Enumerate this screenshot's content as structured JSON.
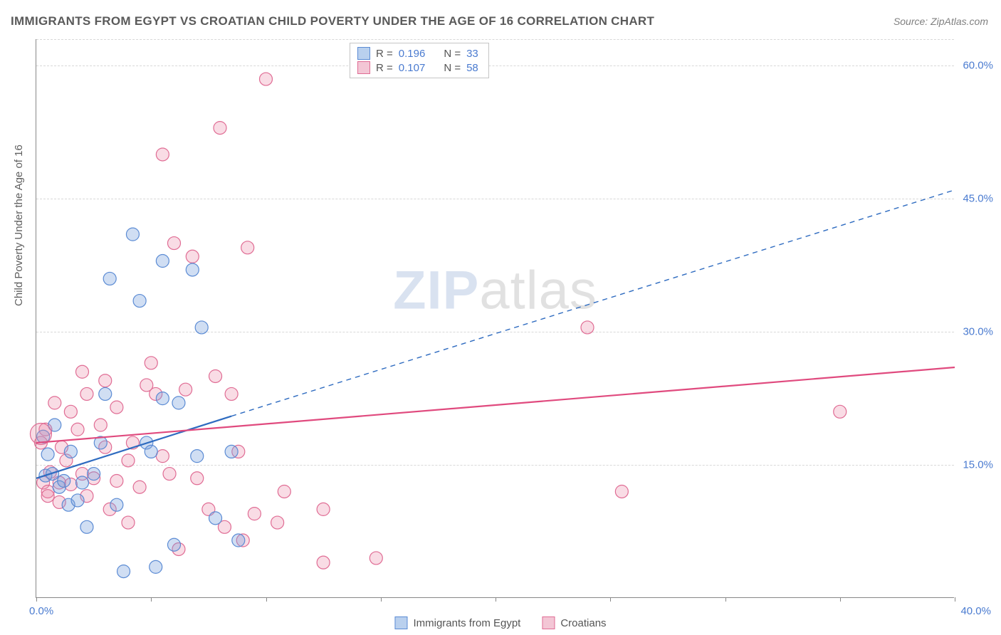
{
  "title": "IMMIGRANTS FROM EGYPT VS CROATIAN CHILD POVERTY UNDER THE AGE OF 16 CORRELATION CHART",
  "source_label": "Source: ",
  "source_name": "ZipAtlas.com",
  "ylabel": "Child Poverty Under the Age of 16",
  "watermark_a": "ZIP",
  "watermark_b": "atlas",
  "chart": {
    "type": "scatter",
    "xlim": [
      0,
      40
    ],
    "ylim": [
      0,
      63
    ],
    "ytick_positions": [
      15,
      30,
      45,
      60
    ],
    "ytick_labels": [
      "15.0%",
      "30.0%",
      "45.0%",
      "60.0%"
    ],
    "xtick_left": "0.0%",
    "xtick_right": "40.0%",
    "xtick_marks": [
      0,
      5,
      10,
      15,
      20,
      25,
      30,
      35,
      40
    ],
    "grid_color": "#d8d8d8",
    "background_color": "#ffffff",
    "axis_color": "#888888",
    "tick_label_color": "#4a7bd0",
    "point_radius": 9,
    "point_stroke_width": 1.2,
    "trend_line_width": 2.2,
    "series": [
      {
        "name": "Immigrants from Egypt",
        "fill": "rgba(120,160,220,0.35)",
        "stroke": "#5b8bd4",
        "swatch_fill": "#b9d0ee",
        "swatch_border": "#5b8bd4",
        "r_value": "0.196",
        "n_value": "33",
        "trend": {
          "solid": {
            "x1": 0,
            "y1": 13.5,
            "x2": 8.5,
            "y2": 20.5
          },
          "dashed": {
            "x1": 8.5,
            "y1": 20.5,
            "x2": 40,
            "y2": 46
          },
          "color": "#2e6bc0"
        },
        "points": [
          [
            0.3,
            18.2
          ],
          [
            0.4,
            13.8
          ],
          [
            0.5,
            16.2
          ],
          [
            0.7,
            14.0
          ],
          [
            0.8,
            19.5
          ],
          [
            1.0,
            12.5
          ],
          [
            1.2,
            13.2
          ],
          [
            1.4,
            10.5
          ],
          [
            1.5,
            16.5
          ],
          [
            1.8,
            11.0
          ],
          [
            2.0,
            13.0
          ],
          [
            2.2,
            8.0
          ],
          [
            2.5,
            14.0
          ],
          [
            2.8,
            17.5
          ],
          [
            3.0,
            23.0
          ],
          [
            3.2,
            36.0
          ],
          [
            3.5,
            10.5
          ],
          [
            3.8,
            3.0
          ],
          [
            4.2,
            41.0
          ],
          [
            4.5,
            33.5
          ],
          [
            4.8,
            17.5
          ],
          [
            5.0,
            16.5
          ],
          [
            5.2,
            3.5
          ],
          [
            5.5,
            22.5
          ],
          [
            5.5,
            38.0
          ],
          [
            6.0,
            6.0
          ],
          [
            6.2,
            22.0
          ],
          [
            6.8,
            37.0
          ],
          [
            7.0,
            16.0
          ],
          [
            7.2,
            30.5
          ],
          [
            7.8,
            9.0
          ],
          [
            8.5,
            16.5
          ],
          [
            8.8,
            6.5
          ]
        ]
      },
      {
        "name": "Croatians",
        "fill": "rgba(235,140,170,0.30)",
        "stroke": "#e06c94",
        "swatch_fill": "#f3c6d5",
        "swatch_border": "#e06c94",
        "r_value": "0.107",
        "n_value": "58",
        "trend": {
          "solid": {
            "x1": 0,
            "y1": 17.5,
            "x2": 40,
            "y2": 26
          },
          "color": "#e04a7e"
        },
        "points": [
          [
            0.2,
            17.5
          ],
          [
            0.3,
            13.0
          ],
          [
            0.4,
            19.0
          ],
          [
            0.5,
            12.0
          ],
          [
            0.6,
            14.2
          ],
          [
            0.8,
            22.0
          ],
          [
            1.0,
            13.0
          ],
          [
            1.1,
            17.0
          ],
          [
            1.3,
            15.5
          ],
          [
            1.5,
            21.0
          ],
          [
            1.5,
            12.8
          ],
          [
            1.8,
            19.0
          ],
          [
            2.0,
            14.0
          ],
          [
            2.0,
            25.5
          ],
          [
            2.2,
            23.0
          ],
          [
            2.2,
            11.5
          ],
          [
            2.5,
            13.5
          ],
          [
            2.8,
            19.5
          ],
          [
            3.0,
            24.5
          ],
          [
            3.2,
            10.0
          ],
          [
            3.5,
            13.2
          ],
          [
            3.5,
            21.5
          ],
          [
            4.0,
            15.5
          ],
          [
            4.0,
            8.5
          ],
          [
            4.2,
            17.5
          ],
          [
            4.5,
            12.5
          ],
          [
            4.8,
            24.0
          ],
          [
            5.0,
            26.5
          ],
          [
            5.2,
            23.0
          ],
          [
            5.5,
            16.0
          ],
          [
            5.5,
            50.0
          ],
          [
            5.8,
            14.0
          ],
          [
            6.0,
            40.0
          ],
          [
            6.2,
            5.5
          ],
          [
            6.5,
            23.5
          ],
          [
            6.8,
            38.5
          ],
          [
            7.0,
            13.5
          ],
          [
            7.5,
            10.0
          ],
          [
            7.8,
            25.0
          ],
          [
            8.0,
            53.0
          ],
          [
            8.2,
            8.0
          ],
          [
            8.5,
            23.0
          ],
          [
            8.8,
            16.5
          ],
          [
            9.0,
            6.5
          ],
          [
            9.2,
            39.5
          ],
          [
            9.5,
            9.5
          ],
          [
            10.0,
            58.5
          ],
          [
            10.5,
            8.5
          ],
          [
            10.8,
            12.0
          ],
          [
            12.5,
            10.0
          ],
          [
            12.5,
            4.0
          ],
          [
            14.8,
            4.5
          ],
          [
            24.0,
            30.5
          ],
          [
            25.5,
            12.0
          ],
          [
            35.0,
            21.0
          ],
          [
            0.5,
            11.5
          ],
          [
            1.0,
            10.8
          ],
          [
            3.0,
            17.0
          ]
        ]
      }
    ]
  },
  "legend_bottom": [
    {
      "label": "Immigrants from Egypt",
      "fill": "#b9d0ee",
      "border": "#5b8bd4"
    },
    {
      "label": "Croatians",
      "fill": "#f3c6d5",
      "border": "#e06c94"
    }
  ]
}
